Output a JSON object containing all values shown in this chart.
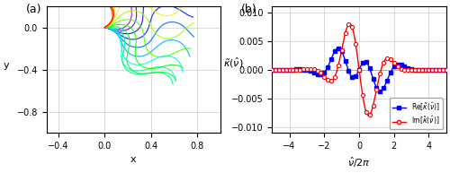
{
  "panel_a_label": "(a)",
  "panel_b_label": "(b)",
  "left_xlim": [
    -0.5,
    1.0
  ],
  "left_ylim": [
    -1.0,
    0.2
  ],
  "left_xlabel": "x",
  "left_ylabel": "y",
  "left_xticks": [
    -0.4,
    0,
    0.4,
    0.8
  ],
  "left_yticks": [
    -0.8,
    -0.4,
    0
  ],
  "right_xlim": [
    -5,
    5
  ],
  "right_ylim": [
    -0.011,
    0.011
  ],
  "right_xlabel": "$\\hat{\\nu}/2\\pi$",
  "right_ylabel": "$\\tilde{\\kappa}(\\hat{\\nu})$",
  "right_yticks": [
    -0.01,
    -0.005,
    0,
    0.005,
    0.01
  ],
  "right_xticks": [
    -4,
    -2,
    0,
    2,
    4
  ],
  "legend_re": "Re[$\\tilde{\\kappa}(\\hat{\\nu})$]",
  "legend_im": "Im[$\\tilde{\\kappa}(\\hat{\\nu})$]",
  "num_curves": 18,
  "background_color": "#ffffff",
  "grid_color": "#cccccc"
}
